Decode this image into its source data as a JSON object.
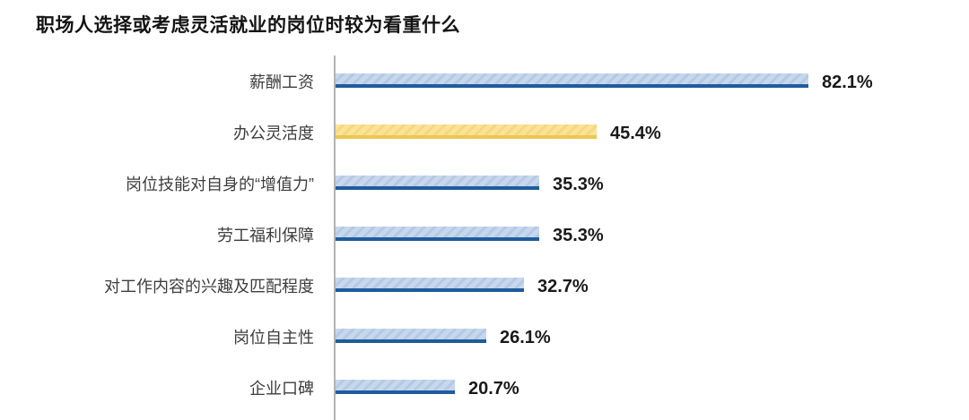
{
  "title": "职场人选择或考虑灵活就业的岗位时较为看重什么",
  "chart_data": {
    "type": "bar",
    "orientation": "horizontal",
    "title": "职场人选择或考虑灵活就业的岗位时较为看重什么",
    "categories": [
      "薪酬工资",
      "办公灵活度",
      "岗位技能对自身的“增值力”",
      "劳工福利保障",
      "对工作内容的兴趣及匹配程度",
      "岗位自主性",
      "企业口碑"
    ],
    "values": [
      82.1,
      45.4,
      35.3,
      35.3,
      32.7,
      26.1,
      20.7
    ],
    "value_labels": [
      "82.1%",
      "45.4%",
      "35.3%",
      "35.3%",
      "32.7%",
      "26.1%",
      "20.7%"
    ],
    "xlim": [
      0,
      90
    ],
    "grid": false,
    "legend": false,
    "highlight_index": 1,
    "colors": {
      "bar_fill": "#c7d7ec",
      "bar_stripe": "#b4c9e4",
      "bar_edge": "#1f5c9d",
      "highlight_fill": "#fae399",
      "highlight_stripe": "#f6d87c",
      "highlight_edge": "#edc751",
      "axis_line": "#b3b3b3",
      "title_text": "#141414",
      "label_text": "#3d3d3d",
      "value_text": "#1a1a1a"
    }
  }
}
